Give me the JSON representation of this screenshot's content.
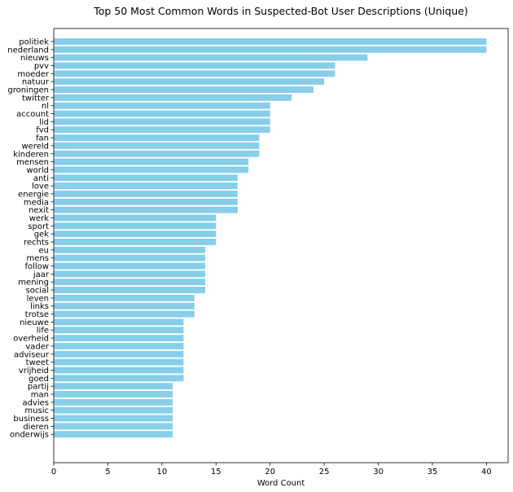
{
  "chart_data": {
    "type": "bar",
    "orientation": "horizontal",
    "title": "Top 50 Most Common Words in Suspected-Bot User Descriptions (Unique)",
    "xlabel": "Word Count",
    "ylabel": "",
    "xlim": [
      0,
      42
    ],
    "xticks": [
      0,
      5,
      10,
      15,
      20,
      25,
      30,
      35,
      40
    ],
    "grid": false,
    "bar_color": "#87ceeb",
    "categories": [
      "politiek",
      "nederland",
      "nieuws",
      "pvv",
      "moeder",
      "natuur",
      "groningen",
      "twitter",
      "nl",
      "account",
      "lid",
      "fvd",
      "fan",
      "wereld",
      "kinderen",
      "mensen",
      "world",
      "anti",
      "love",
      "energie",
      "media",
      "nexit",
      "werk",
      "sport",
      "gek",
      "rechts",
      "eu",
      "mens",
      "follow",
      "jaar",
      "mening",
      "social",
      "leven",
      "links",
      "trotse",
      "nieuwe",
      "life",
      "overheid",
      "vader",
      "adviseur",
      "tweet",
      "vrijheid",
      "goed",
      "partij",
      "man",
      "advies",
      "music",
      "business",
      "dieren",
      "onderwijs"
    ],
    "values": [
      40,
      40,
      29,
      26,
      26,
      25,
      24,
      22,
      20,
      20,
      20,
      20,
      19,
      19,
      19,
      18,
      18,
      17,
      17,
      17,
      17,
      17,
      15,
      15,
      15,
      15,
      14,
      14,
      14,
      14,
      14,
      14,
      13,
      13,
      13,
      12,
      12,
      12,
      12,
      12,
      12,
      12,
      12,
      11,
      11,
      11,
      11,
      11,
      11,
      11
    ]
  }
}
